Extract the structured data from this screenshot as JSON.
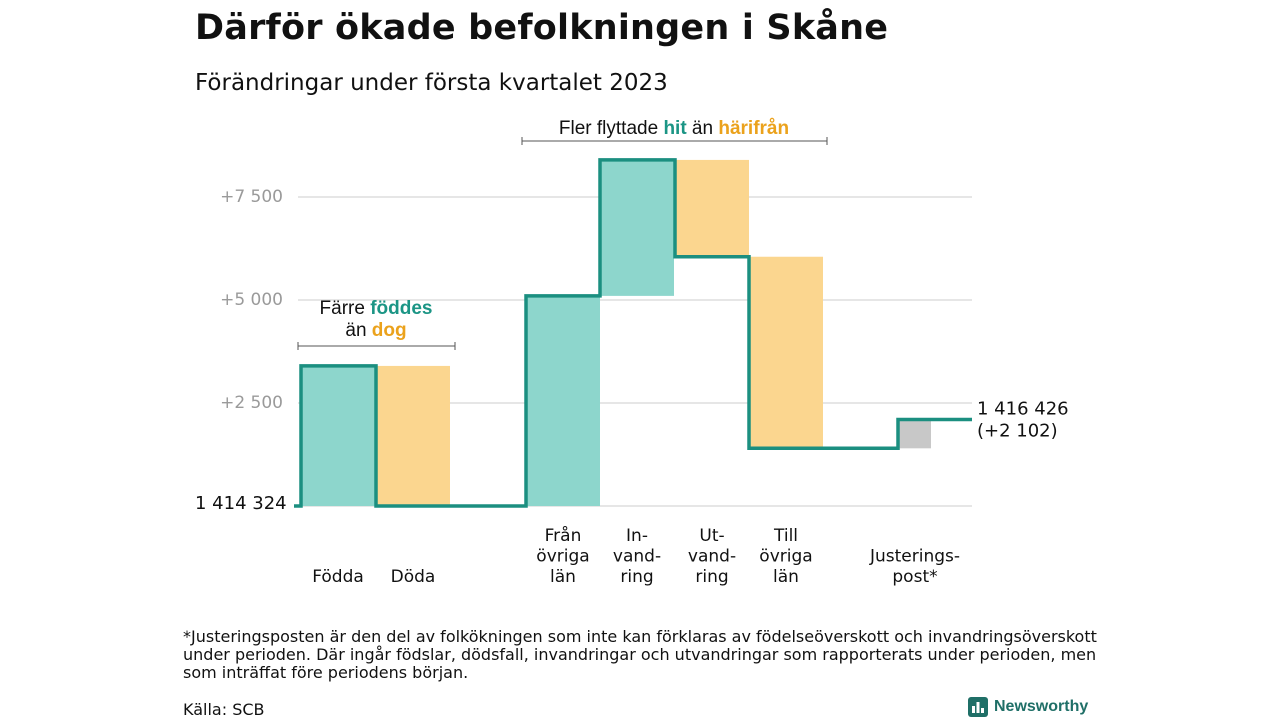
{
  "title": "Därför ökade befolkningen i Skåne",
  "subtitle": "Förändringar under första kvartalet 2023",
  "colors": {
    "inflow": "#8dd6cc",
    "outflow": "#fbd68f",
    "adjust": "#c8c8c8",
    "line": "#1b8f80",
    "teal_text": "#1b9585",
    "orange_text": "#eba21c",
    "grid": "#dddddd",
    "tick": "#9a9a9a"
  },
  "annotations": {
    "migration_pre": "Fler flyttade ",
    "migration_hit": "hit",
    "migration_mid": " än ",
    "migration_harifran": "härifrån",
    "births_pre": "Färre ",
    "births_foddes": "föddes",
    "births_an": "än ",
    "births_dog": "dog"
  },
  "chart_data": {
    "type": "waterfall",
    "title": "Därför ökade befolkningen i Skåne",
    "subtitle": "Förändringar under första kvartalet 2023",
    "ylim": [
      -250,
      9200
    ],
    "yticks": [
      {
        "value": 2500,
        "label": "+2 500"
      },
      {
        "value": 5000,
        "label": "+5 000"
      },
      {
        "value": 7500,
        "label": "+7 500"
      }
    ],
    "start": {
      "value": 0,
      "label": "1 414 324"
    },
    "end": {
      "value": 2102,
      "label_total": "1 416 426",
      "label_change": "(+2 102)"
    },
    "steps": [
      {
        "name": "Födda",
        "label_lines": [
          "Födda"
        ],
        "delta": 3400,
        "kind": "inflow",
        "group": "births"
      },
      {
        "name": "Döda",
        "label_lines": [
          "Döda"
        ],
        "delta": -3400,
        "kind": "outflow",
        "group": "births"
      },
      {
        "name": "Från övriga län",
        "label_lines": [
          "Från",
          "övriga",
          "län"
        ],
        "delta": 5100,
        "kind": "inflow",
        "group": "migration"
      },
      {
        "name": "Invandring",
        "label_lines": [
          "In-",
          "vand-",
          "ring"
        ],
        "delta": 3300,
        "kind": "inflow",
        "group": "migration"
      },
      {
        "name": "Utvandring",
        "label_lines": [
          "Ut-",
          "vand-",
          "ring"
        ],
        "delta": -2350,
        "kind": "outflow",
        "group": "migration"
      },
      {
        "name": "Till övriga län",
        "label_lines": [
          "Till",
          "övriga",
          "län"
        ],
        "delta": -4650,
        "kind": "outflow",
        "group": "migration"
      },
      {
        "name": "Justeringspost",
        "label_lines": [
          "Justerings-",
          "post*"
        ],
        "delta": 700,
        "kind": "adjust",
        "group": "adjust"
      }
    ]
  },
  "footnote": "*Justeringsposten är den del av folkökningen som inte kan förklaras av födelseöverskott och invandringsöverskott under perioden. Där ingår födslar, dödsfall, invandringar och utvandringar som rapporterats under perioden, men som inträffat före periodens början.",
  "source": "Källa: SCB",
  "brand": {
    "name": "Newsworthy",
    "icon": "bar-chart-logo-icon"
  }
}
